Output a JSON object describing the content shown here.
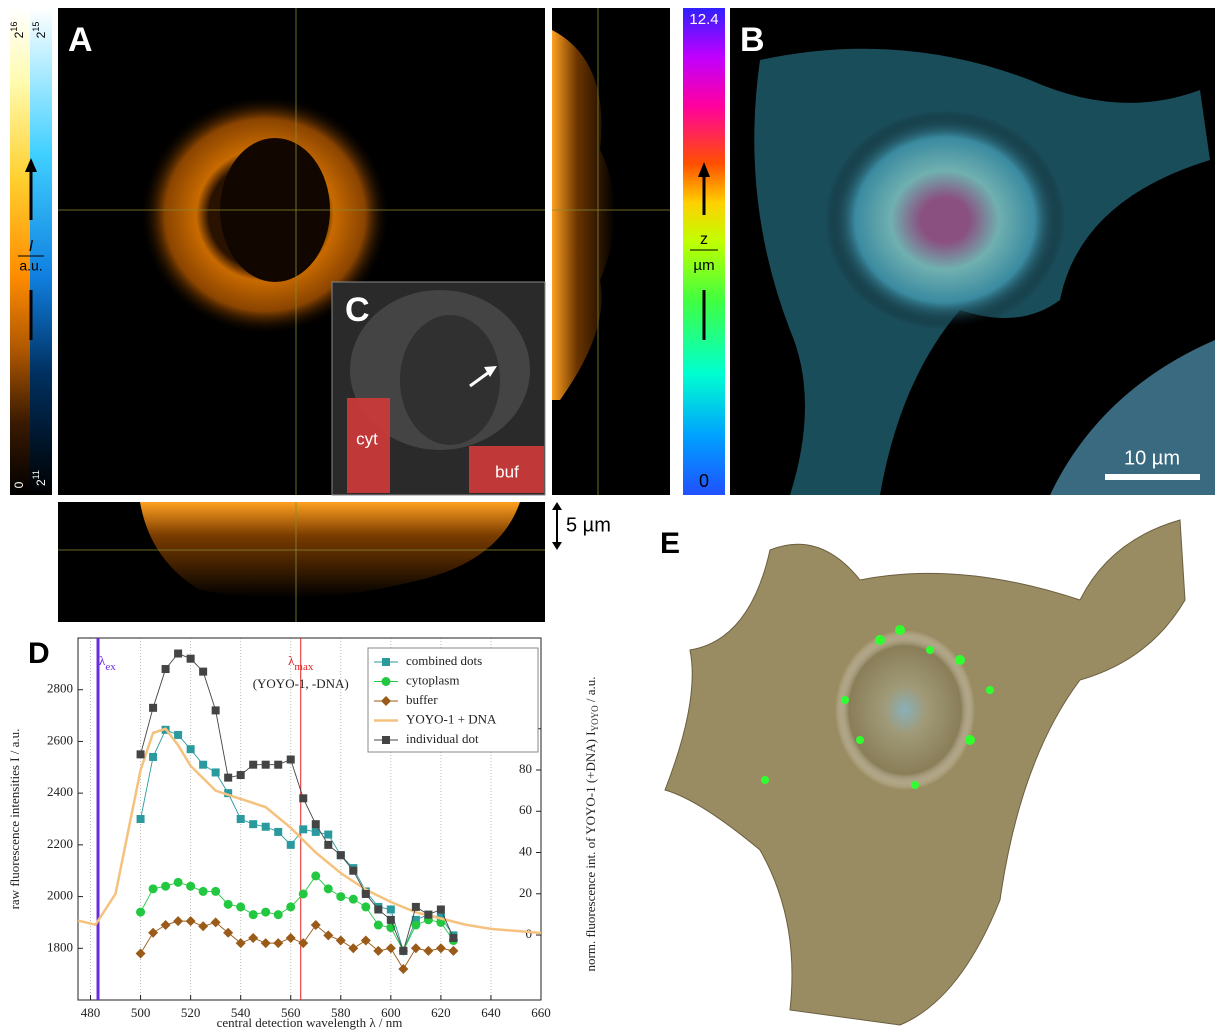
{
  "labels": {
    "a": "A",
    "b": "B",
    "c": "C",
    "d": "D",
    "e": "E"
  },
  "colorbar_a": {
    "left_top": {
      "base": "2",
      "exp": "16"
    },
    "right_top": {
      "base": "2",
      "exp": "15"
    },
    "left_bottom": "0",
    "right_bottom": {
      "base": "2",
      "exp": "11"
    },
    "quantity": "I",
    "unit": "a.u."
  },
  "colorbar_b": {
    "max": "12.4",
    "min": "0",
    "quantity": "z",
    "unit": "µm"
  },
  "inset_c": {
    "regions": [
      "cyt",
      "buf"
    ]
  },
  "scale_bars": {
    "side": "5 µm",
    "b": "10 µm"
  },
  "chart_data": {
    "type": "line",
    "x_label": "central detection wavelength λ / nm",
    "y_label": "raw fluorescence intensities I / a.u.",
    "y2_label": {
      "main": "norm. fluorescence int. of YOYO-1 (+DNA) I",
      "sub": "YOYO",
      "unit": " / a.u."
    },
    "x": [
      500,
      505,
      510,
      515,
      520,
      525,
      530,
      535,
      540,
      545,
      550,
      555,
      560,
      565,
      570,
      575,
      580,
      585,
      590,
      595,
      600,
      605,
      610,
      615,
      620,
      625
    ],
    "series": [
      {
        "name": "combined dots",
        "color": "#2a9a9e",
        "marker": "square",
        "values": [
          2300,
          2540,
          2645,
          2625,
          2570,
          2510,
          2480,
          2400,
          2300,
          2280,
          2270,
          2250,
          2200,
          2260,
          2250,
          2240,
          2160,
          2110,
          2020,
          1960,
          1950,
          1790,
          1910,
          1930,
          1920,
          1850
        ]
      },
      {
        "name": "cytoplasm",
        "color": "#22c840",
        "marker": "circle",
        "values": [
          1940,
          2030,
          2040,
          2055,
          2040,
          2020,
          2020,
          1970,
          1960,
          1930,
          1940,
          1930,
          1960,
          2010,
          2080,
          2030,
          2000,
          1990,
          1960,
          1890,
          1880,
          1790,
          1890,
          1910,
          1900,
          1830
        ]
      },
      {
        "name": "buffer",
        "color": "#9a5a18",
        "marker": "diamond",
        "values": [
          1780,
          1860,
          1890,
          1905,
          1905,
          1885,
          1900,
          1860,
          1820,
          1840,
          1820,
          1820,
          1840,
          1820,
          1890,
          1850,
          1830,
          1800,
          1830,
          1790,
          1800,
          1720,
          1800,
          1790,
          1800,
          1790
        ]
      },
      {
        "name": "YOYO-1 + DNA",
        "color": "#f5c27e",
        "marker": "none",
        "axis": "y2",
        "x": [
          475,
          482,
          490,
          495,
          500,
          505,
          510,
          515,
          520,
          530,
          540,
          550,
          560,
          570,
          580,
          590,
          600,
          610,
          620,
          630,
          640,
          650,
          660
        ],
        "values": [
          7,
          5,
          20,
          50,
          80,
          98,
          100,
          92,
          82,
          70,
          66,
          62,
          52,
          40,
          30,
          22,
          16,
          11,
          8,
          5,
          3,
          2,
          1
        ]
      },
      {
        "name": "individual dot",
        "color": "#444444",
        "marker": "square",
        "values": [
          2550,
          2730,
          2880,
          2940,
          2920,
          2870,
          2720,
          2460,
          2470,
          2510,
          2510,
          2510,
          2530,
          2380,
          2280,
          2200,
          2160,
          2100,
          2010,
          1950,
          1910,
          1790,
          1960,
          1930,
          1950,
          1840
        ]
      }
    ],
    "annotations": [
      {
        "symbol": "λ",
        "sub": "ex",
        "x": 483,
        "color": "#6a2be0"
      },
      {
        "symbol": "λ",
        "sub": "max",
        "note": "(YOYO-1, -DNA)",
        "x": 564,
        "color": "#e02020"
      }
    ],
    "xlim": [
      475,
      660
    ],
    "xticks": [
      480,
      500,
      520,
      540,
      560,
      580,
      600,
      620,
      640,
      660
    ],
    "ylim": [
      1600,
      3000
    ],
    "yticks": [
      1800,
      2000,
      2200,
      2400,
      2600,
      2800
    ],
    "y2lim": [
      -31.5,
      144
    ],
    "y2ticks": [
      0,
      20,
      40,
      60,
      80,
      100
    ],
    "grid": true,
    "legend": "upper right"
  }
}
